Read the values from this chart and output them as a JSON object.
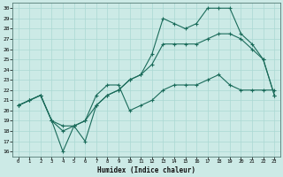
{
  "xlabel": "Humidex (Indice chaleur)",
  "bg_color": "#cceae6",
  "grid_color": "#aad8d3",
  "line_color": "#1a6b5a",
  "xlim": [
    -0.5,
    23.5
  ],
  "ylim": [
    15.5,
    30.5
  ],
  "xticks": [
    0,
    1,
    2,
    3,
    4,
    5,
    6,
    7,
    8,
    9,
    10,
    11,
    12,
    13,
    14,
    15,
    16,
    17,
    18,
    19,
    20,
    21,
    22,
    23
  ],
  "yticks": [
    16,
    17,
    18,
    19,
    20,
    21,
    22,
    23,
    24,
    25,
    26,
    27,
    28,
    29,
    30
  ],
  "series1_x": [
    0,
    1,
    2,
    3,
    4,
    5,
    6,
    7,
    8,
    9,
    10,
    11,
    12,
    13,
    14,
    15,
    16,
    17,
    18,
    19,
    20,
    21,
    22,
    23
  ],
  "series1_y": [
    20.5,
    21.0,
    21.5,
    19.0,
    18.5,
    18.5,
    17.0,
    20.5,
    21.5,
    22.0,
    23.0,
    23.5,
    25.5,
    29.0,
    28.5,
    28.0,
    28.5,
    30.0,
    30.0,
    30.0,
    27.5,
    26.5,
    25.0,
    21.5
  ],
  "series2_x": [
    0,
    1,
    2,
    3,
    4,
    5,
    6,
    7,
    8,
    9,
    10,
    11,
    12,
    13,
    14,
    15,
    16,
    17,
    18,
    19,
    20,
    21,
    22,
    23
  ],
  "series2_y": [
    20.5,
    21.0,
    21.5,
    19.0,
    16.0,
    18.5,
    19.0,
    20.5,
    21.5,
    22.0,
    23.0,
    23.5,
    24.5,
    26.5,
    26.5,
    26.5,
    26.5,
    27.0,
    27.5,
    27.5,
    27.0,
    26.0,
    25.0,
    21.5
  ],
  "series3_x": [
    0,
    1,
    2,
    3,
    4,
    5,
    6,
    7,
    8,
    9,
    10,
    11,
    12,
    13,
    14,
    15,
    16,
    17,
    18,
    19,
    20,
    21,
    22,
    23
  ],
  "series3_y": [
    20.5,
    21.0,
    21.5,
    19.0,
    18.0,
    18.5,
    19.0,
    21.5,
    22.5,
    22.5,
    20.0,
    20.5,
    21.0,
    22.0,
    22.5,
    22.5,
    22.5,
    23.0,
    23.5,
    22.5,
    22.0,
    22.0,
    22.0,
    22.0
  ]
}
